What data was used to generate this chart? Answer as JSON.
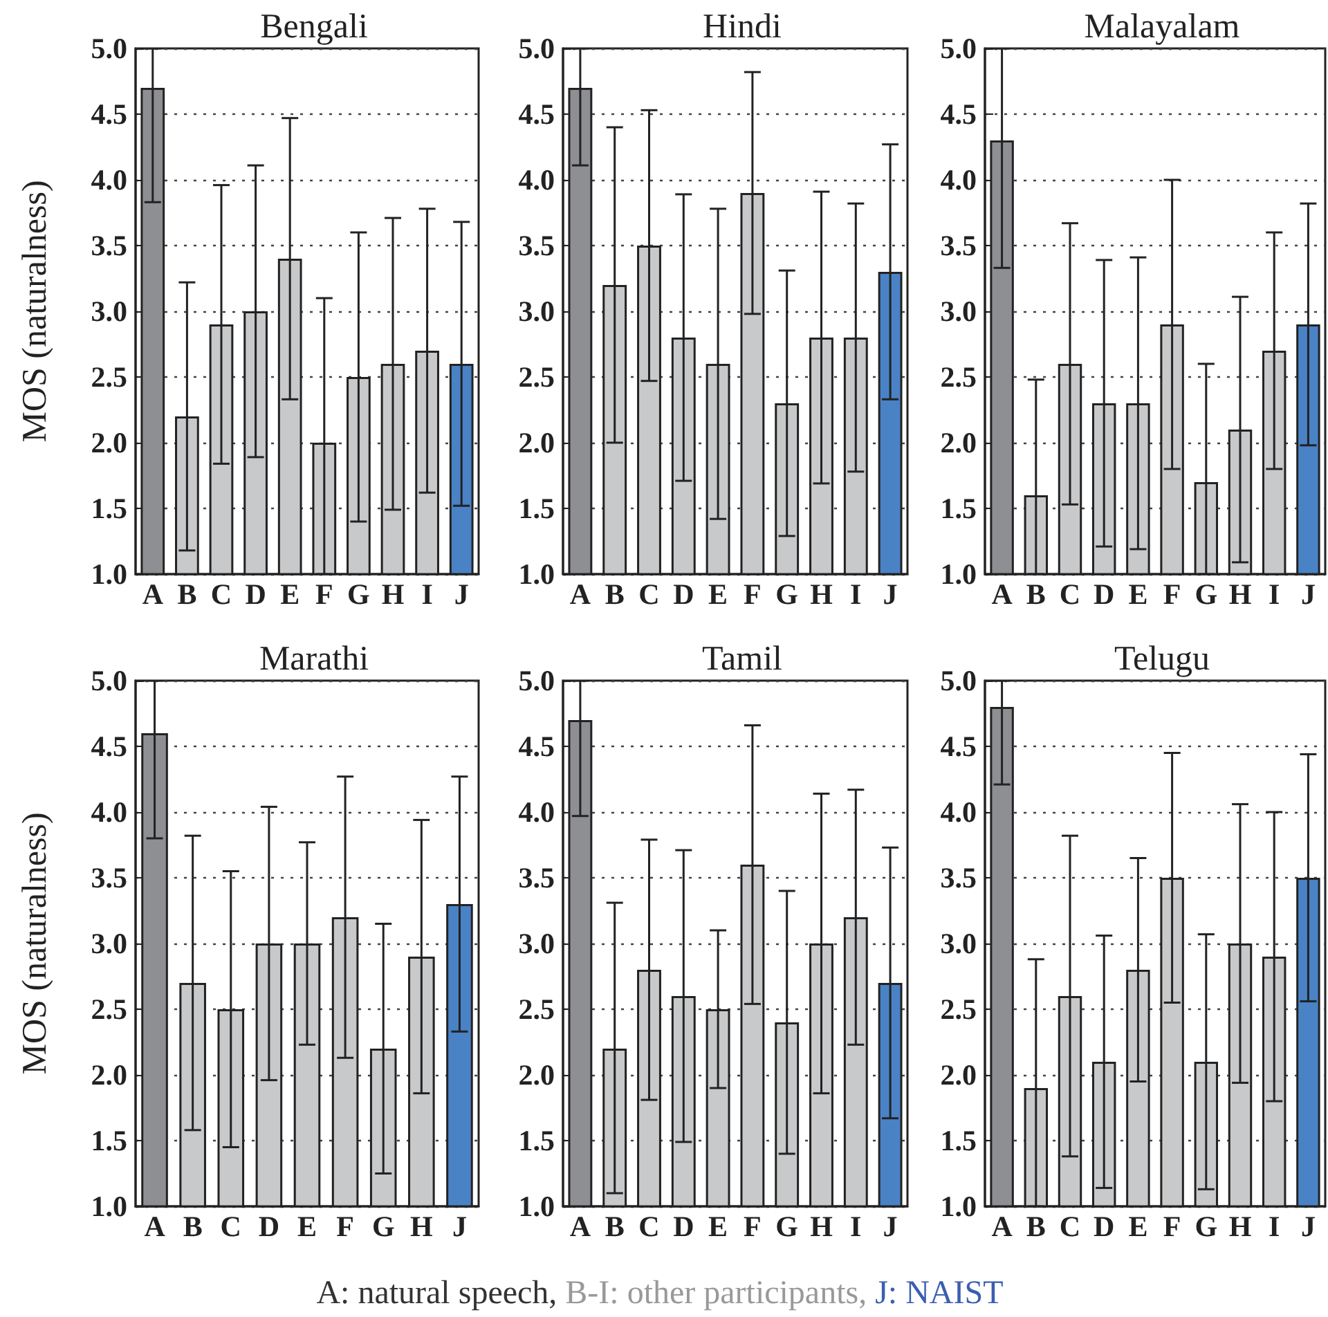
{
  "chart_data": [
    {
      "type": "bar",
      "title": "Bengali",
      "ylabel": "MOS (naturalness)",
      "categories": [
        "A",
        "B",
        "C",
        "D",
        "E",
        "F",
        "G",
        "H",
        "I",
        "J"
      ],
      "values": [
        4.7,
        2.2,
        2.9,
        3.0,
        3.4,
        2.0,
        2.5,
        2.6,
        2.7,
        2.6
      ],
      "colors": [
        "#8e8f93",
        "#c8c9cb",
        "#c8c9cb",
        "#c8c9cb",
        "#c8c9cb",
        "#c8c9cb",
        "#c8c9cb",
        "#c8c9cb",
        "#c8c9cb",
        "#4a82c6"
      ],
      "errors": [
        [
          3.83,
          5.0
        ],
        [
          1.18,
          3.22
        ],
        [
          1.84,
          3.96
        ],
        [
          1.89,
          4.11
        ],
        [
          2.33,
          4.47
        ],
        [
          1.0,
          3.1
        ],
        [
          1.4,
          3.6
        ],
        [
          1.49,
          3.71
        ],
        [
          1.62,
          3.78
        ],
        [
          1.52,
          3.68
        ]
      ],
      "ylim": [
        1.0,
        5.0
      ],
      "yticks": [
        {
          "value": 1.0,
          "label": "1.0"
        },
        {
          "value": 1.5,
          "label": "1.5"
        },
        {
          "value": 2.0,
          "label": "2.0"
        },
        {
          "value": 2.5,
          "label": "2.5"
        },
        {
          "value": 3.0,
          "label": "3.0"
        },
        {
          "value": 3.5,
          "label": "3.5"
        },
        {
          "value": 4.0,
          "label": "4.0"
        },
        {
          "value": 4.5,
          "label": "4.5"
        },
        {
          "value": 5.0,
          "label": "5.0"
        }
      ],
      "grid": "y"
    },
    {
      "type": "bar",
      "title": "Hindi",
      "categories": [
        "A",
        "B",
        "C",
        "D",
        "E",
        "F",
        "G",
        "H",
        "I",
        "J"
      ],
      "values": [
        4.7,
        3.2,
        3.5,
        2.8,
        2.6,
        3.9,
        2.3,
        2.8,
        2.8,
        3.3
      ],
      "colors": [
        "#8e8f93",
        "#c8c9cb",
        "#c8c9cb",
        "#c8c9cb",
        "#c8c9cb",
        "#c8c9cb",
        "#c8c9cb",
        "#c8c9cb",
        "#c8c9cb",
        "#4a82c6"
      ],
      "errors": [
        [
          4.11,
          5.0
        ],
        [
          2.0,
          4.4
        ],
        [
          2.47,
          4.53
        ],
        [
          1.71,
          3.89
        ],
        [
          1.42,
          3.78
        ],
        [
          2.98,
          4.82
        ],
        [
          1.29,
          3.31
        ],
        [
          1.69,
          3.91
        ],
        [
          1.78,
          3.82
        ],
        [
          2.33,
          4.27
        ]
      ],
      "ylim": [
        1.0,
        5.0
      ],
      "yticks": [
        {
          "value": 1.0,
          "label": "1.0"
        },
        {
          "value": 1.5,
          "label": "1.5"
        },
        {
          "value": 2.0,
          "label": "2.0"
        },
        {
          "value": 2.5,
          "label": "2.5"
        },
        {
          "value": 3.0,
          "label": "3.0"
        },
        {
          "value": 3.5,
          "label": "3.5"
        },
        {
          "value": 4.0,
          "label": "4.0"
        },
        {
          "value": 4.5,
          "label": "4.5"
        },
        {
          "value": 5.0,
          "label": "5.0"
        }
      ],
      "grid": "y"
    },
    {
      "type": "bar",
      "title": "Malayalam",
      "categories": [
        "A",
        "B",
        "C",
        "D",
        "E",
        "F",
        "G",
        "H",
        "I",
        "J"
      ],
      "values": [
        4.3,
        1.6,
        2.6,
        2.3,
        2.3,
        2.9,
        1.7,
        2.1,
        2.7,
        2.9
      ],
      "colors": [
        "#8e8f93",
        "#c8c9cb",
        "#c8c9cb",
        "#c8c9cb",
        "#c8c9cb",
        "#c8c9cb",
        "#c8c9cb",
        "#c8c9cb",
        "#c8c9cb",
        "#4a82c6"
      ],
      "errors": [
        [
          3.33,
          5.0
        ],
        [
          1.0,
          2.48
        ],
        [
          1.53,
          3.67
        ],
        [
          1.21,
          3.39
        ],
        [
          1.19,
          3.41
        ],
        [
          1.8,
          4.0
        ],
        [
          1.0,
          2.6
        ],
        [
          1.09,
          3.11
        ],
        [
          1.8,
          3.6
        ],
        [
          1.98,
          3.82
        ]
      ],
      "ylim": [
        1.0,
        5.0
      ],
      "yticks": [
        {
          "value": 1.0,
          "label": "1.0"
        },
        {
          "value": 1.5,
          "label": "1.5"
        },
        {
          "value": 2.0,
          "label": "2.0"
        },
        {
          "value": 2.5,
          "label": "2.5"
        },
        {
          "value": 3.0,
          "label": "3.0"
        },
        {
          "value": 3.5,
          "label": "3.5"
        },
        {
          "value": 4.0,
          "label": "4.0"
        },
        {
          "value": 4.5,
          "label": "4.5"
        },
        {
          "value": 5.0,
          "label": "5.0"
        }
      ],
      "grid": "y"
    },
    {
      "type": "bar",
      "title": "Marathi",
      "ylabel": "MOS (naturalness)",
      "categories": [
        "A",
        "B",
        "C",
        "D",
        "E",
        "F",
        "G",
        "H",
        "J"
      ],
      "values": [
        4.6,
        2.7,
        2.5,
        3.0,
        3.0,
        3.2,
        2.2,
        2.9,
        3.3
      ],
      "colors": [
        "#8e8f93",
        "#c8c9cb",
        "#c8c9cb",
        "#c8c9cb",
        "#c8c9cb",
        "#c8c9cb",
        "#c8c9cb",
        "#c8c9cb",
        "#4a82c6"
      ],
      "errors": [
        [
          3.8,
          5.0
        ],
        [
          1.58,
          3.82
        ],
        [
          1.45,
          3.55
        ],
        [
          1.96,
          4.04
        ],
        [
          2.23,
          3.77
        ],
        [
          2.13,
          4.27
        ],
        [
          1.25,
          3.15
        ],
        [
          1.86,
          3.94
        ],
        [
          2.33,
          4.27
        ]
      ],
      "ylim": [
        1.0,
        5.0
      ],
      "yticks": [
        {
          "value": 1.0,
          "label": "1.0"
        },
        {
          "value": 1.5,
          "label": "1.5"
        },
        {
          "value": 2.0,
          "label": "2.0"
        },
        {
          "value": 2.5,
          "label": "2.5"
        },
        {
          "value": 3.0,
          "label": "3.0"
        },
        {
          "value": 3.5,
          "label": "3.5"
        },
        {
          "value": 4.0,
          "label": "4.0"
        },
        {
          "value": 4.5,
          "label": "4.5"
        },
        {
          "value": 5.0,
          "label": "5.0"
        }
      ],
      "grid": "y"
    },
    {
      "type": "bar",
      "title": "Tamil",
      "categories": [
        "A",
        "B",
        "C",
        "D",
        "E",
        "F",
        "G",
        "H",
        "I",
        "J"
      ],
      "values": [
        4.7,
        2.2,
        2.8,
        2.6,
        2.5,
        3.6,
        2.4,
        3.0,
        3.2,
        2.7
      ],
      "colors": [
        "#8e8f93",
        "#c8c9cb",
        "#c8c9cb",
        "#c8c9cb",
        "#c8c9cb",
        "#c8c9cb",
        "#c8c9cb",
        "#c8c9cb",
        "#c8c9cb",
        "#4a82c6"
      ],
      "errors": [
        [
          3.97,
          5.0
        ],
        [
          1.1,
          3.31
        ],
        [
          1.81,
          3.79
        ],
        [
          1.49,
          3.71
        ],
        [
          1.9,
          3.1
        ],
        [
          2.54,
          4.66
        ],
        [
          1.4,
          3.4
        ],
        [
          1.86,
          4.14
        ],
        [
          2.23,
          4.17
        ],
        [
          1.67,
          3.73
        ]
      ],
      "ylim": [
        1.0,
        5.0
      ],
      "yticks": [
        {
          "value": 1.0,
          "label": "1.0"
        },
        {
          "value": 1.5,
          "label": "1.5"
        },
        {
          "value": 2.0,
          "label": "2.0"
        },
        {
          "value": 2.5,
          "label": "2.5"
        },
        {
          "value": 3.0,
          "label": "3.0"
        },
        {
          "value": 3.5,
          "label": "3.5"
        },
        {
          "value": 4.0,
          "label": "4.0"
        },
        {
          "value": 4.5,
          "label": "4.5"
        },
        {
          "value": 5.0,
          "label": "5.0"
        }
      ],
      "grid": "y"
    },
    {
      "type": "bar",
      "title": "Telugu",
      "categories": [
        "A",
        "B",
        "C",
        "D",
        "E",
        "F",
        "G",
        "H",
        "I",
        "J"
      ],
      "values": [
        4.8,
        1.9,
        2.6,
        2.1,
        2.8,
        3.5,
        2.1,
        3.0,
        2.9,
        3.5
      ],
      "colors": [
        "#8e8f93",
        "#c8c9cb",
        "#c8c9cb",
        "#c8c9cb",
        "#c8c9cb",
        "#c8c9cb",
        "#c8c9cb",
        "#c8c9cb",
        "#c8c9cb",
        "#4a82c6"
      ],
      "errors": [
        [
          4.21,
          5.0
        ],
        [
          1.0,
          2.88
        ],
        [
          1.38,
          3.82
        ],
        [
          1.14,
          3.06
        ],
        [
          1.95,
          3.65
        ],
        [
          2.55,
          4.45
        ],
        [
          1.13,
          3.07
        ],
        [
          1.94,
          4.06
        ],
        [
          1.8,
          4.0
        ],
        [
          2.56,
          4.44
        ]
      ],
      "ylim": [
        1.0,
        5.0
      ],
      "yticks": [
        {
          "value": 1.0,
          "label": "1.0"
        },
        {
          "value": 1.5,
          "label": "1.5"
        },
        {
          "value": 2.0,
          "label": "2.0"
        },
        {
          "value": 2.5,
          "label": "2.5"
        },
        {
          "value": 3.0,
          "label": "3.0"
        },
        {
          "value": 3.5,
          "label": "3.5"
        },
        {
          "value": 4.0,
          "label": "4.0"
        },
        {
          "value": 4.5,
          "label": "4.5"
        },
        {
          "value": 5.0,
          "label": "5.0"
        }
      ],
      "grid": "y",
      "annotations": [
        "A: natural speech,",
        "B-I: other participants,",
        "J: NAIST"
      ]
    }
  ]
}
